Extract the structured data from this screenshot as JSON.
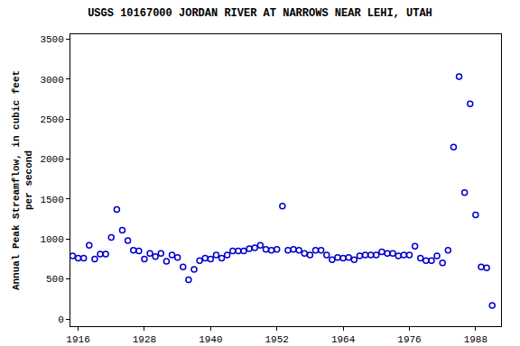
{
  "chart_data": {
    "type": "scatter",
    "title": "USGS 10167000 JORDAN RIVER AT NARROWS NEAR LEHI, UTAH",
    "y_label": "Annual Peak Streamflow, in cubic feet per second",
    "x": [
      1915,
      1916,
      1917,
      1918,
      1919,
      1920,
      1921,
      1922,
      1923,
      1924,
      1925,
      1926,
      1927,
      1928,
      1929,
      1930,
      1931,
      1932,
      1933,
      1934,
      1935,
      1936,
      1937,
      1938,
      1939,
      1940,
      1941,
      1942,
      1943,
      1944,
      1945,
      1946,
      1947,
      1948,
      1949,
      1950,
      1951,
      1952,
      1953,
      1954,
      1955,
      1956,
      1957,
      1958,
      1959,
      1960,
      1961,
      1962,
      1963,
      1964,
      1965,
      1966,
      1967,
      1968,
      1969,
      1970,
      1971,
      1972,
      1973,
      1974,
      1975,
      1976,
      1977,
      1978,
      1979,
      1980,
      1981,
      1982,
      1983,
      1984,
      1985,
      1986,
      1987,
      1988,
      1989,
      1990,
      1991
    ],
    "values": [
      790,
      760,
      760,
      920,
      750,
      810,
      810,
      1020,
      1370,
      1110,
      980,
      860,
      850,
      750,
      820,
      780,
      820,
      720,
      800,
      770,
      650,
      490,
      620,
      730,
      760,
      750,
      800,
      760,
      800,
      850,
      850,
      850,
      880,
      890,
      920,
      870,
      860,
      870,
      1410,
      860,
      870,
      860,
      820,
      800,
      860,
      860,
      800,
      740,
      770,
      760,
      770,
      740,
      790,
      800,
      800,
      800,
      840,
      820,
      820,
      790,
      800,
      800,
      910,
      760,
      730,
      730,
      790,
      700,
      860,
      2150,
      3030,
      1580,
      2690,
      1300,
      650,
      640,
      170
    ],
    "color": "#0000cc",
    "marker": "circle-open",
    "xlim": [
      1914.6,
      1992.6
    ],
    "xticks": [
      1916,
      1928,
      1940,
      1952,
      1964,
      1976,
      1988
    ],
    "ylim": [
      -90,
      3560
    ],
    "yticks": [
      0,
      500,
      1000,
      1500,
      2000,
      2500,
      3000,
      3500
    ],
    "grid": false
  }
}
